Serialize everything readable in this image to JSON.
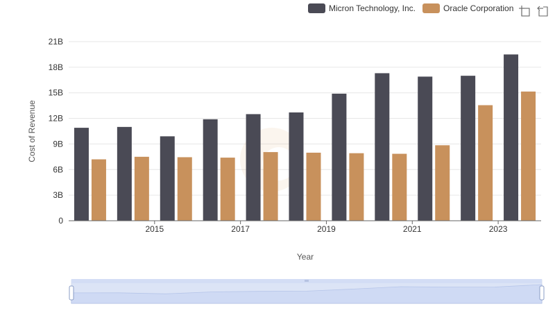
{
  "chart_data": {
    "type": "bar",
    "x": [
      2014,
      2015,
      2016,
      2017,
      2018,
      2019,
      2020,
      2021,
      2022,
      2023,
      2024
    ],
    "x_tick_labels": [
      "2015",
      "2017",
      "2019",
      "2021",
      "2023"
    ],
    "xlabel": "Year",
    "ylabel": "Cost of Revenue",
    "ylim": [
      0,
      21000000000
    ],
    "y_ticks": [
      {
        "value": 0,
        "label": "0"
      },
      {
        "value": 3000000000,
        "label": "3B"
      },
      {
        "value": 6000000000,
        "label": "6B"
      },
      {
        "value": 9000000000,
        "label": "9B"
      },
      {
        "value": 12000000000,
        "label": "12B"
      },
      {
        "value": 15000000000,
        "label": "15B"
      },
      {
        "value": 18000000000,
        "label": "18B"
      },
      {
        "value": 21000000000,
        "label": "21B"
      }
    ],
    "grid": true,
    "legend_position": "top-right",
    "series": [
      {
        "name": "Micron Technology, Inc.",
        "color": "#4a4a55",
        "values": [
          10900000000,
          11000000000,
          9900000000,
          11900000000,
          12500000000,
          12700000000,
          14900000000,
          17300000000,
          16900000000,
          17000000000,
          19500000000
        ]
      },
      {
        "name": "Oracle Corporation",
        "color": "#c8915c",
        "values": [
          7200000000,
          7500000000,
          7450000000,
          7400000000,
          8050000000,
          7980000000,
          7920000000,
          7850000000,
          8850000000,
          13550000000,
          15150000000
        ]
      }
    ]
  },
  "toolbar": {
    "icons": [
      "zoom-icon",
      "restore-icon"
    ]
  }
}
